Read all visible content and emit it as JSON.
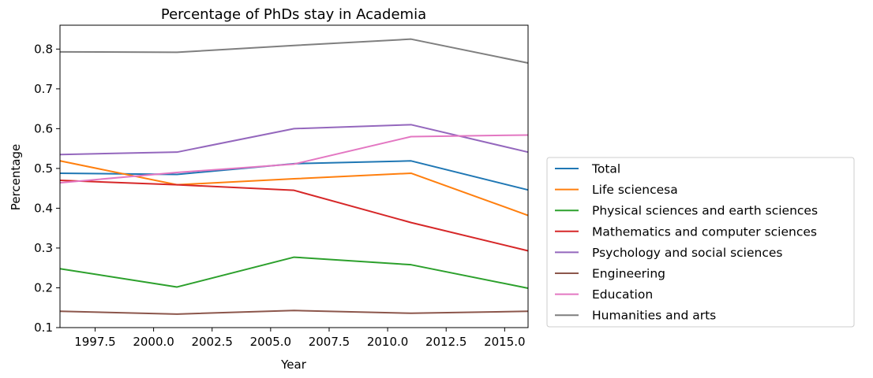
{
  "chart_data": {
    "type": "line",
    "title": "Percentage of PhDs stay in Academia",
    "xlabel": "Year",
    "ylabel": "Percentage",
    "xlim": [
      1996,
      2016
    ],
    "ylim": [
      0.1,
      0.86
    ],
    "xticks": [
      1997.5,
      2000.0,
      2002.5,
      2005.0,
      2007.5,
      2010.0,
      2012.5,
      2015.0
    ],
    "xtick_labels": [
      "1997.5",
      "2000.0",
      "2002.5",
      "2005.0",
      "2007.5",
      "2010.0",
      "2012.5",
      "2015.0"
    ],
    "yticks": [
      0.1,
      0.2,
      0.3,
      0.4,
      0.5,
      0.6,
      0.7,
      0.8
    ],
    "ytick_labels": [
      "0.1",
      "0.2",
      "0.3",
      "0.4",
      "0.5",
      "0.6",
      "0.7",
      "0.8"
    ],
    "grid": false,
    "legend_position": "outside-right",
    "x": [
      1996,
      2001,
      2006,
      2011,
      2016
    ],
    "series": [
      {
        "name": "Total",
        "color": "#1f77b4",
        "values": [
          0.488,
          0.485,
          0.512,
          0.519,
          0.446
        ]
      },
      {
        "name": "Life sciencesa",
        "color": "#ff7f0e",
        "values": [
          0.519,
          0.459,
          0.474,
          0.488,
          0.382
        ]
      },
      {
        "name": "Physical sciences and earth sciences",
        "color": "#2ca02c",
        "values": [
          0.248,
          0.202,
          0.277,
          0.258,
          0.199
        ]
      },
      {
        "name": "Mathematics and computer sciences",
        "color": "#d62728",
        "values": [
          0.47,
          0.459,
          0.445,
          0.364,
          0.293
        ]
      },
      {
        "name": "Psychology and social sciences",
        "color": "#9467bd",
        "values": [
          0.535,
          0.541,
          0.6,
          0.61,
          0.541
        ]
      },
      {
        "name": "Engineering",
        "color": "#8c564b",
        "values": [
          0.141,
          0.134,
          0.143,
          0.136,
          0.141
        ]
      },
      {
        "name": "Education",
        "color": "#e377c2",
        "values": [
          0.464,
          0.49,
          0.511,
          0.58,
          0.584
        ]
      },
      {
        "name": "Humanities and arts",
        "color": "#7f7f7f",
        "values": [
          0.793,
          0.792,
          0.809,
          0.825,
          0.765
        ]
      }
    ]
  }
}
